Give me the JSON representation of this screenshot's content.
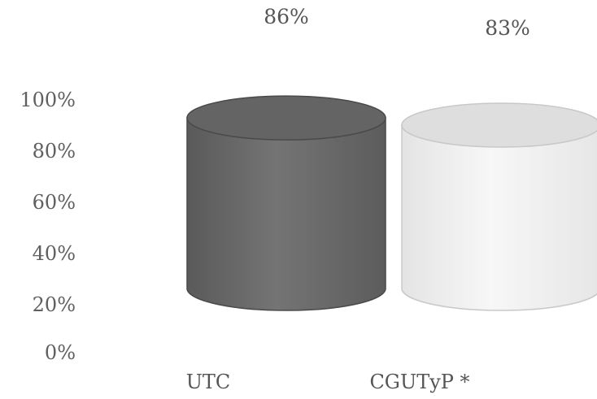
{
  "chart_data": {
    "type": "bar",
    "categories": [
      "UTC",
      "CGUTyP *"
    ],
    "values": [
      86,
      83
    ],
    "data_labels": [
      "86%",
      "83%"
    ],
    "y_ticks": [
      "0%",
      "20%",
      "40%",
      "60%",
      "80%",
      "100%"
    ],
    "ylim": [
      0,
      100
    ],
    "grid": false,
    "style": "3d-cylinder",
    "colors": [
      "#6b6b6b",
      "#ececec"
    ]
  }
}
